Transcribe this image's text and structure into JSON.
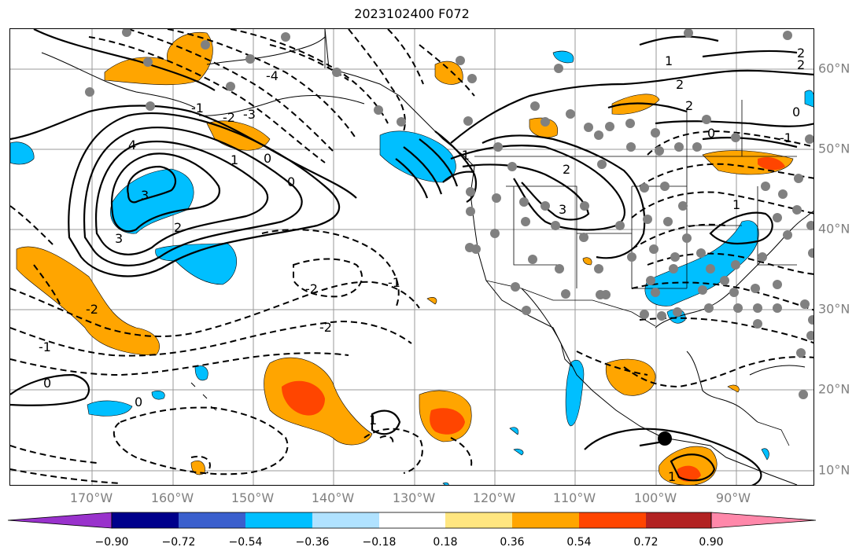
{
  "title": "2023102400 F072",
  "lon_labels": [
    "170°W",
    "160°W",
    "150°W",
    "140°W",
    "130°W",
    "120°W",
    "110°W",
    "100°W",
    "90°W"
  ],
  "lat_labels": [
    "60°N",
    "50°N",
    "40°N",
    "30°N",
    "20°N",
    "10°N"
  ],
  "colorbar": {
    "ticks": [
      "−0.90",
      "−0.72",
      "−0.54",
      "−0.36",
      "−0.18",
      "0.18",
      "0.36",
      "0.54",
      "0.72",
      "0.90"
    ],
    "colors": [
      "#9932cc",
      "#00008b",
      "#3a5fcd",
      "#00bfff",
      "#b0e2ff",
      "#ffffff",
      "#ffe680",
      "#ffa500",
      "#ff4500",
      "#b22222",
      "#ff88aa"
    ]
  },
  "contour_labels": [
    "4",
    "3",
    "3",
    "2",
    "1",
    "0",
    "0",
    "-1",
    "-2",
    "-3",
    "-4",
    "-2",
    "-1",
    "0",
    "0",
    "-2",
    "-1",
    "2",
    "3",
    "2",
    "2",
    "1",
    "0",
    "-1",
    "1",
    "2",
    "0",
    "1",
    "-1",
    "-2",
    "2",
    "1"
  ],
  "shading_colors": {
    "positive": "#ffa500",
    "strong_positive": "#ff4500",
    "negative": "#00bfff"
  },
  "marker": {
    "color": "#000000"
  }
}
